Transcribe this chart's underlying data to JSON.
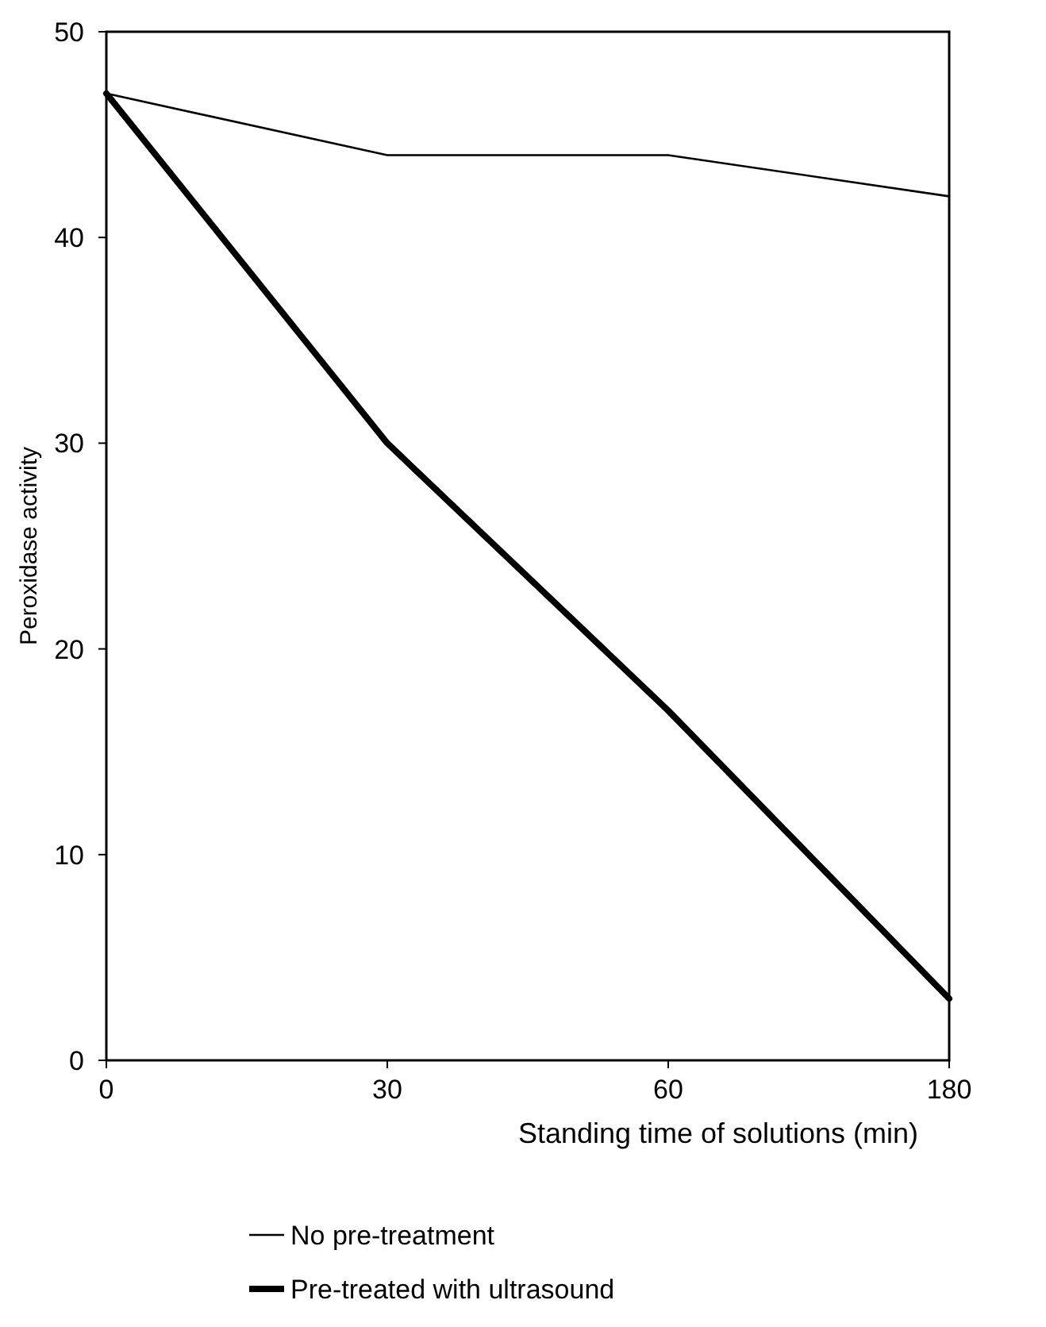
{
  "chart_data": {
    "type": "line",
    "xlabel": "Standing time of solutions (min)",
    "ylabel": "Peroxidase activity",
    "categories": [
      "0",
      "30",
      "60",
      "180"
    ],
    "ylim": [
      0,
      50
    ],
    "yticks": [
      0,
      10,
      20,
      30,
      40,
      50
    ],
    "series": [
      {
        "name": "No pre-treatment",
        "color": "#000000",
        "values": [
          47,
          44,
          44,
          42
        ]
      },
      {
        "name": "Pre-treated with ultrasound",
        "color": "#000000",
        "values": [
          47,
          30,
          17,
          3
        ]
      }
    ],
    "grid": false,
    "legend": "bottom",
    "marker": "none",
    "line_style": "solid"
  }
}
